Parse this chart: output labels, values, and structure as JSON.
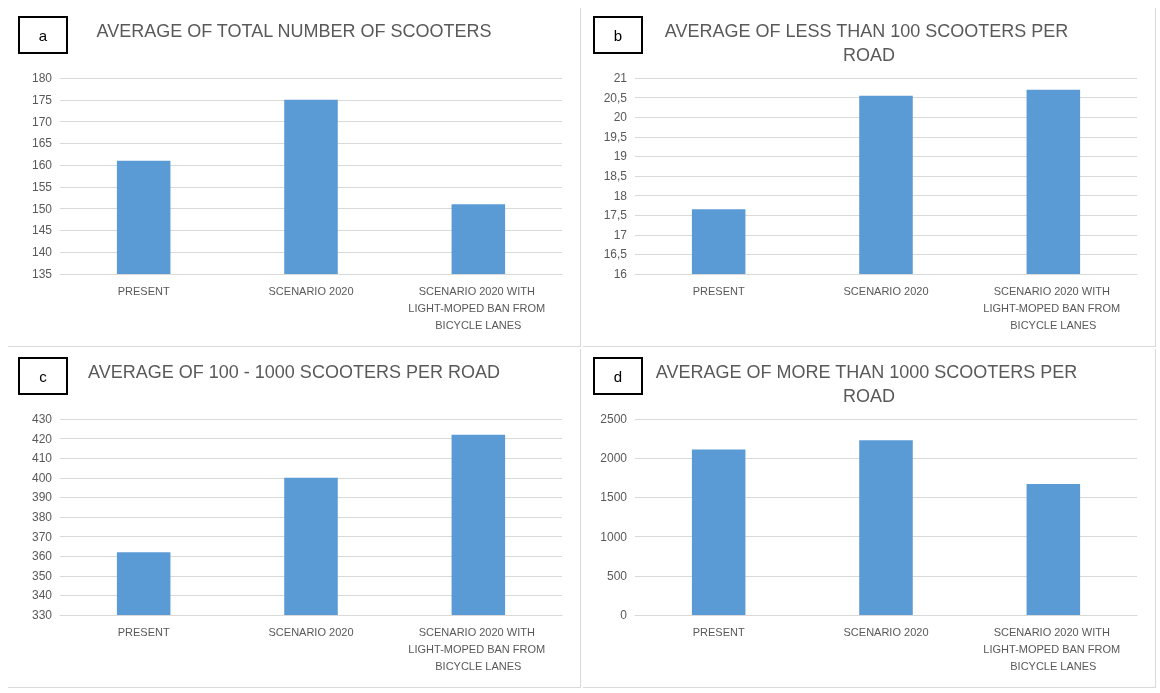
{
  "chart_data": [
    {
      "type": "bar",
      "title": "AVERAGE OF TOTAL NUMBER OF SCOOTERS",
      "annotations": [
        "a"
      ],
      "categories": [
        "PRESENT",
        "SCENARIO 2020",
        "SCENARIO 2020 WITH LIGHT-MOPED BAN FROM BICYCLE LANES"
      ],
      "values": [
        161,
        175,
        151
      ],
      "color": "#5b9bd5",
      "ylim": [
        135,
        180
      ],
      "yticks": [
        135,
        140,
        145,
        150,
        155,
        160,
        165,
        170,
        175,
        180
      ],
      "grid": "y"
    },
    {
      "type": "bar",
      "title": "AVERAGE OF LESS THAN 100 SCOOTERS PER ROAD",
      "annotations": [
        "b"
      ],
      "categories": [
        "PRESENT",
        "SCENARIO 2020",
        "SCENARIO 2020 WITH LIGHT-MOPED BAN FROM BICYCLE LANES"
      ],
      "values": [
        17.65,
        20.55,
        20.7
      ],
      "color": "#5b9bd5",
      "ylim": [
        16,
        21
      ],
      "yticks": [
        16,
        {
          "value": 16.5,
          "label": "16,5"
        },
        17,
        {
          "value": 17.5,
          "label": "17,5"
        },
        18,
        {
          "value": 18.5,
          "label": "18,5"
        },
        19,
        {
          "value": 19.5,
          "label": "19,5"
        },
        20,
        {
          "value": 20.5,
          "label": "20,5"
        },
        21
      ],
      "grid": "y"
    },
    {
      "type": "bar",
      "title": "AVERAGE OF 100 - 1000 SCOOTERS PER ROAD",
      "annotations": [
        "c"
      ],
      "categories": [
        "PRESENT",
        "SCENARIO 2020",
        "SCENARIO 2020 WITH LIGHT-MOPED BAN FROM BICYCLE LANES"
      ],
      "values": [
        362,
        400,
        422
      ],
      "color": "#5b9bd5",
      "ylim": [
        330,
        430
      ],
      "yticks": [
        330,
        340,
        350,
        360,
        370,
        380,
        390,
        400,
        410,
        420,
        430
      ],
      "grid": "y"
    },
    {
      "type": "bar",
      "title": "AVERAGE OF MORE THAN 1000 SCOOTERS PER ROAD",
      "annotations": [
        "d"
      ],
      "categories": [
        "PRESENT",
        "SCENARIO 2020",
        "SCENARIO 2020 WITH LIGHT-MOPED BAN FROM BICYCLE LANES"
      ],
      "values": [
        2110,
        2230,
        1670
      ],
      "color": "#5b9bd5",
      "ylim": [
        0,
        2500
      ],
      "yticks": [
        0,
        500,
        1000,
        1500,
        2000,
        2500
      ],
      "grid": "y"
    }
  ]
}
